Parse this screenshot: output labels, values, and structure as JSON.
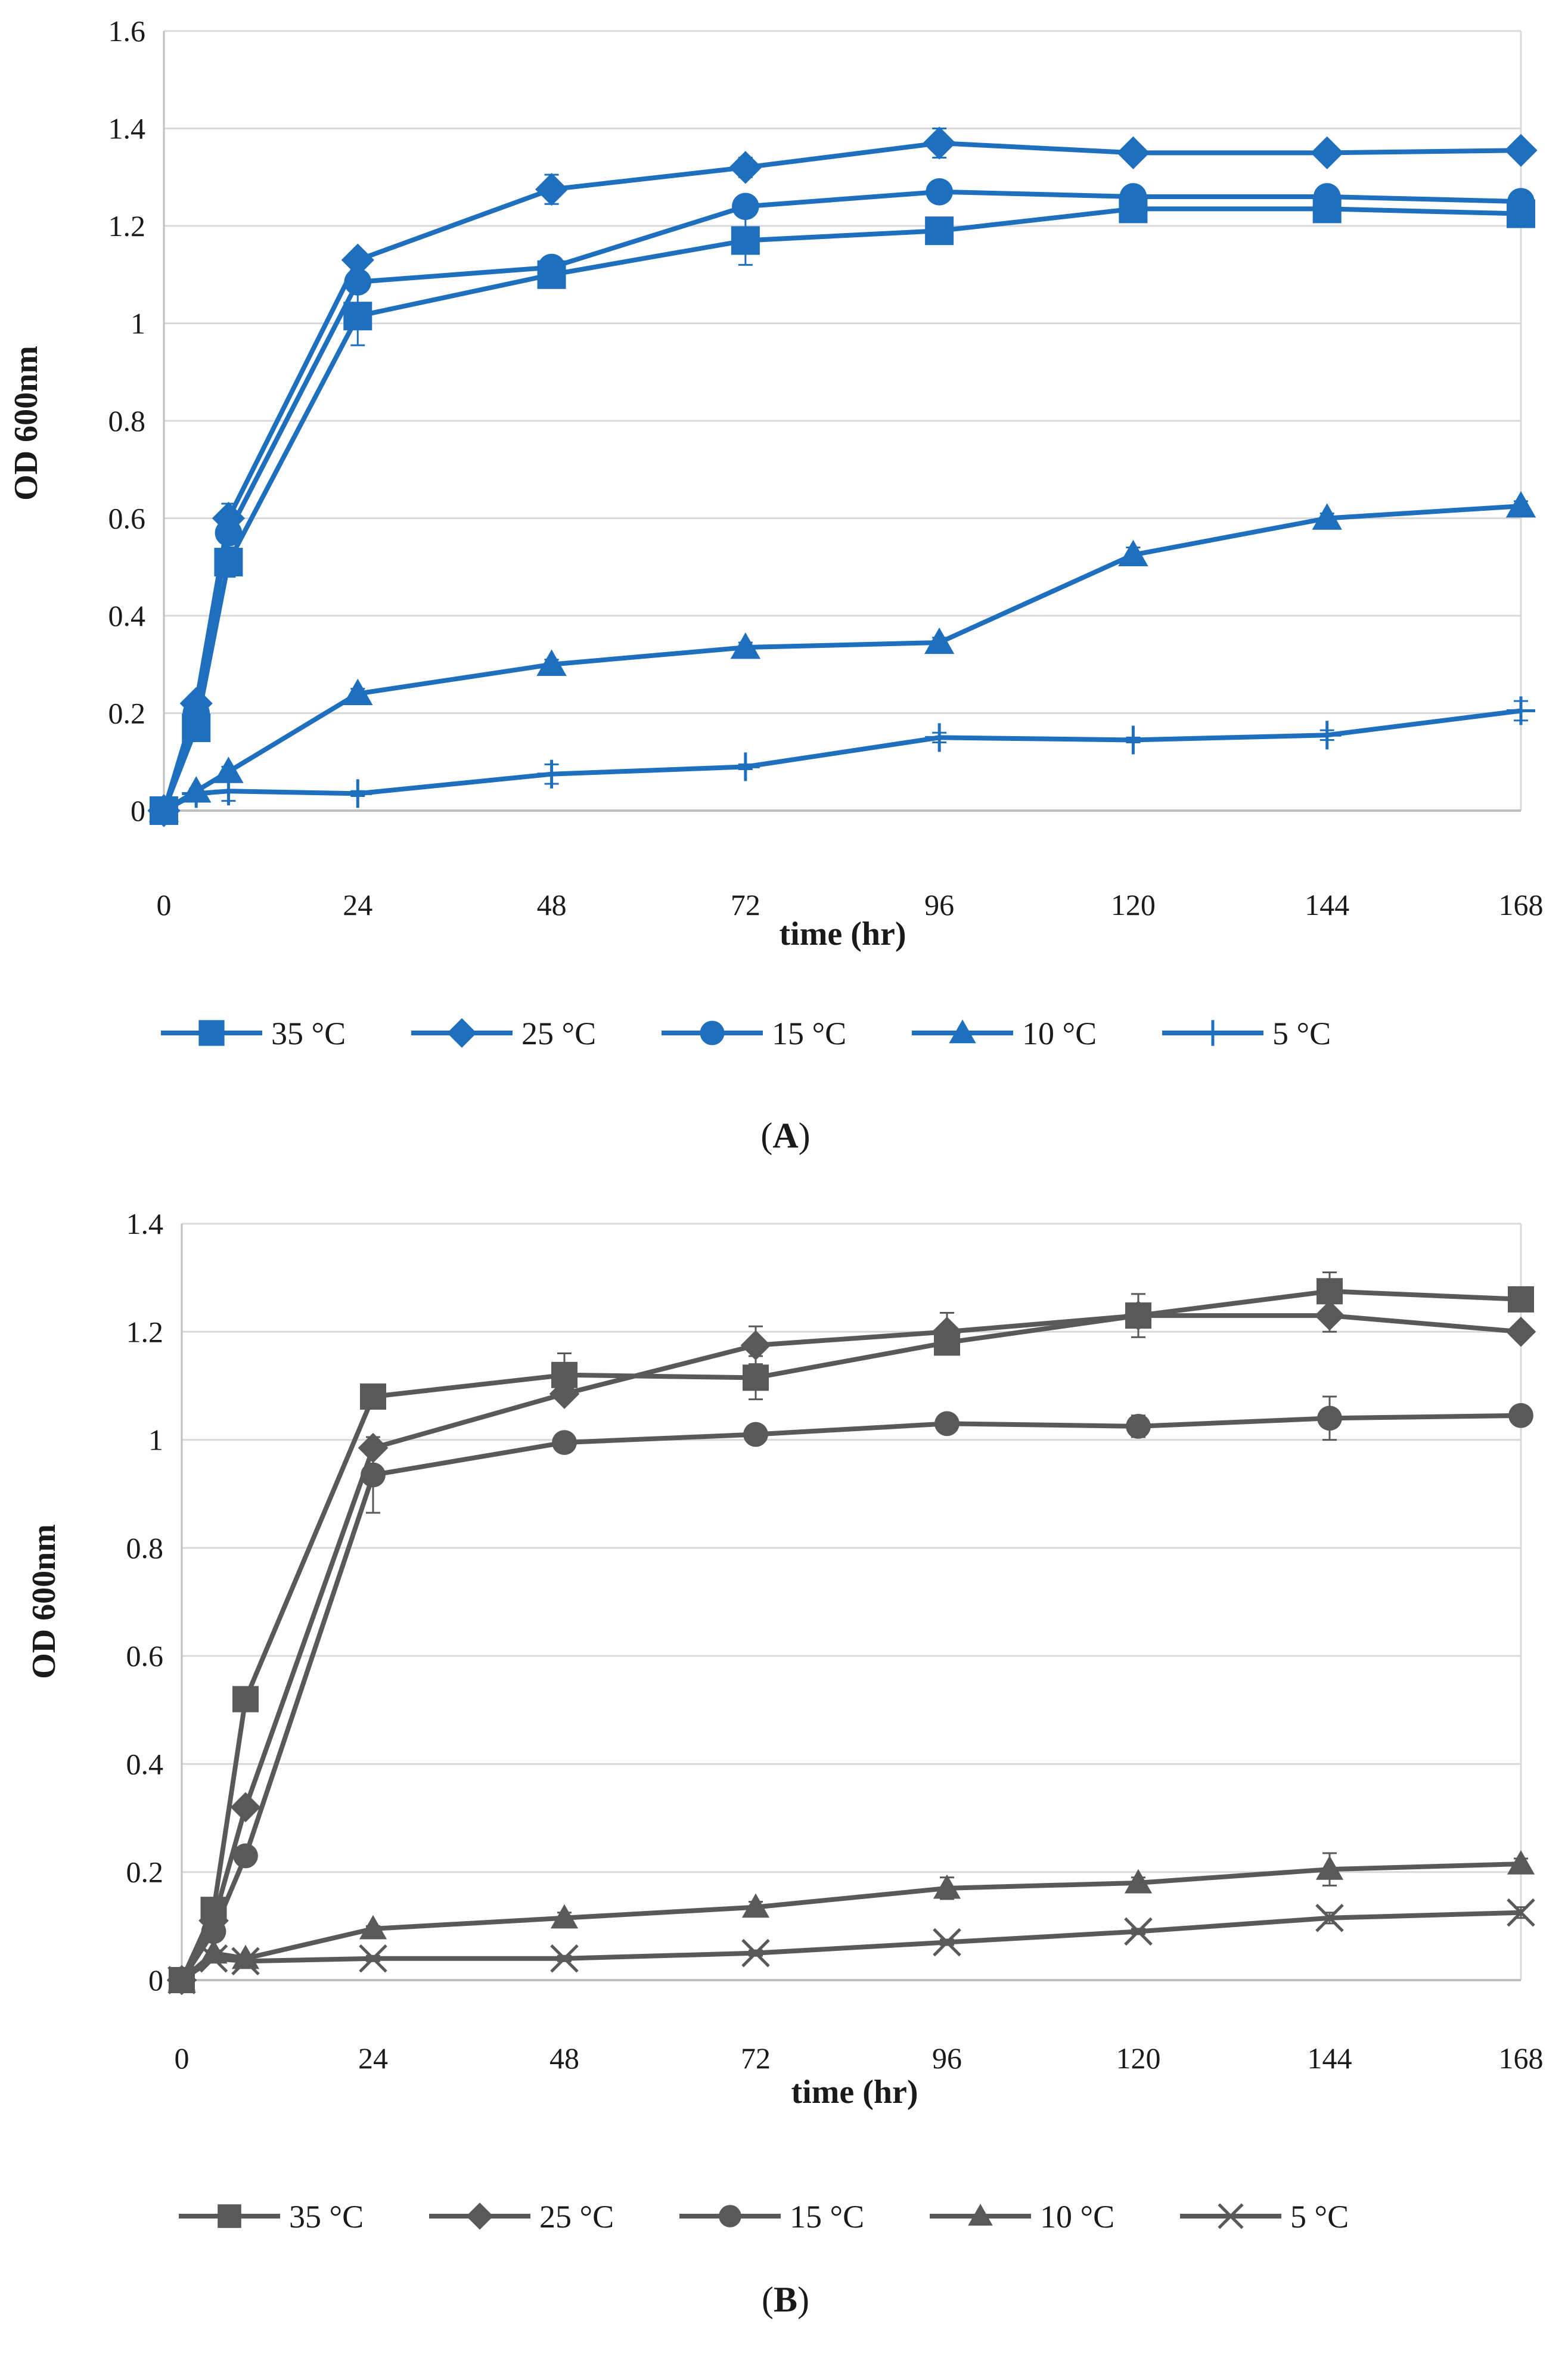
{
  "chart_data": [
    {
      "type": "line",
      "panel_label": "A",
      "color": "#1f6fbf",
      "xlabel": "time (hr)",
      "ylabel": "OD 600nm",
      "xticks": [
        0,
        24,
        48,
        72,
        96,
        120,
        144,
        168
      ],
      "yticks": [
        "0",
        "0.2",
        "0.4",
        "0.6",
        "0.8",
        "1",
        "1.2",
        "1.4",
        "1.6"
      ],
      "xlim": [
        0,
        168
      ],
      "ylim": [
        0,
        1.6
      ],
      "grid": "horizontal",
      "legend_position": "bottom",
      "x": [
        0,
        4,
        8,
        24,
        48,
        72,
        96,
        120,
        144,
        168
      ],
      "series": [
        {
          "name": "35 °C",
          "marker": "square",
          "values": [
            0.0,
            0.17,
            0.51,
            1.015,
            1.1,
            1.17,
            1.19,
            1.235,
            1.235,
            1.225
          ],
          "errors": [
            0,
            0.01,
            0.03,
            0.06,
            0.01,
            0.05,
            0.01,
            0.01,
            0.01,
            0.01
          ]
        },
        {
          "name": "25 °C",
          "marker": "diamond",
          "values": [
            0.0,
            0.22,
            0.6,
            1.13,
            1.275,
            1.32,
            1.37,
            1.35,
            1.35,
            1.355
          ],
          "errors": [
            0,
            0.01,
            0.03,
            0.01,
            0.03,
            0.02,
            0.03,
            0.01,
            0.01,
            0.01
          ]
        },
        {
          "name": "15 °C",
          "marker": "circle",
          "values": [
            0.0,
            0.2,
            0.57,
            1.085,
            1.115,
            1.24,
            1.27,
            1.26,
            1.26,
            1.25
          ],
          "errors": [
            0,
            0.01,
            0.03,
            0.01,
            0.01,
            0.01,
            0.01,
            0.01,
            0.01,
            0.01
          ]
        },
        {
          "name": "10 °C",
          "marker": "triangle",
          "values": [
            0.0,
            0.04,
            0.08,
            0.24,
            0.3,
            0.335,
            0.345,
            0.525,
            0.6,
            0.625
          ],
          "errors": [
            0,
            0.005,
            0.01,
            0.01,
            0.01,
            0.01,
            0.01,
            0.015,
            0.01,
            0.01
          ]
        },
        {
          "name": "5 °C",
          "marker": "plus",
          "values": [
            0.0,
            0.035,
            0.04,
            0.035,
            0.075,
            0.09,
            0.15,
            0.145,
            0.155,
            0.205
          ],
          "errors": [
            0,
            0.005,
            0.02,
            0.005,
            0.02,
            0.005,
            0.01,
            0.005,
            0.01,
            0.02
          ]
        }
      ]
    },
    {
      "type": "line",
      "panel_label": "B",
      "color": "#595959",
      "xlabel": "time (hr)",
      "ylabel": "OD 600nm",
      "xticks": [
        0,
        24,
        48,
        72,
        96,
        120,
        144,
        168
      ],
      "yticks": [
        "0",
        "0.2",
        "0.4",
        "0.6",
        "0.8",
        "1",
        "1.2",
        "1.4"
      ],
      "xlim": [
        0,
        168
      ],
      "ylim": [
        0,
        1.4
      ],
      "grid": "horizontal",
      "legend_position": "bottom",
      "x": [
        0,
        4,
        8,
        24,
        48,
        72,
        96,
        120,
        144,
        168
      ],
      "series": [
        {
          "name": "35 °C",
          "marker": "square",
          "values": [
            0.0,
            0.13,
            0.52,
            1.08,
            1.12,
            1.115,
            1.18,
            1.23,
            1.275,
            1.26
          ],
          "errors": [
            0,
            0.01,
            0.01,
            0.01,
            0.04,
            0.04,
            0.01,
            0.04,
            0.035,
            0.01
          ]
        },
        {
          "name": "25 °C",
          "marker": "diamond",
          "values": [
            0.0,
            0.11,
            0.32,
            0.985,
            1.085,
            1.175,
            1.2,
            1.23,
            1.23,
            1.2
          ],
          "errors": [
            0,
            0.01,
            0.01,
            0.01,
            0.01,
            0.035,
            0.035,
            0.01,
            0.03,
            0.01
          ]
        },
        {
          "name": "15 °C",
          "marker": "circle",
          "values": [
            0.0,
            0.09,
            0.23,
            0.935,
            0.995,
            1.01,
            1.03,
            1.025,
            1.04,
            1.045
          ],
          "errors": [
            0,
            0.01,
            0.01,
            0.07,
            0.01,
            0.01,
            0.01,
            0.02,
            0.04,
            0.01
          ]
        },
        {
          "name": "10 °C",
          "marker": "triangle",
          "values": [
            0.0,
            0.05,
            0.04,
            0.095,
            0.115,
            0.135,
            0.17,
            0.18,
            0.205,
            0.215
          ],
          "errors": [
            0,
            0.005,
            0.005,
            0.005,
            0.01,
            0.01,
            0.02,
            0.01,
            0.03,
            0.01
          ]
        },
        {
          "name": "5 °C",
          "marker": "x",
          "values": [
            0.0,
            0.04,
            0.035,
            0.04,
            0.04,
            0.05,
            0.07,
            0.09,
            0.115,
            0.125
          ],
          "errors": [
            0,
            0.005,
            0.005,
            0.005,
            0.005,
            0.005,
            0.005,
            0.005,
            0.01,
            0.01
          ]
        }
      ]
    }
  ]
}
